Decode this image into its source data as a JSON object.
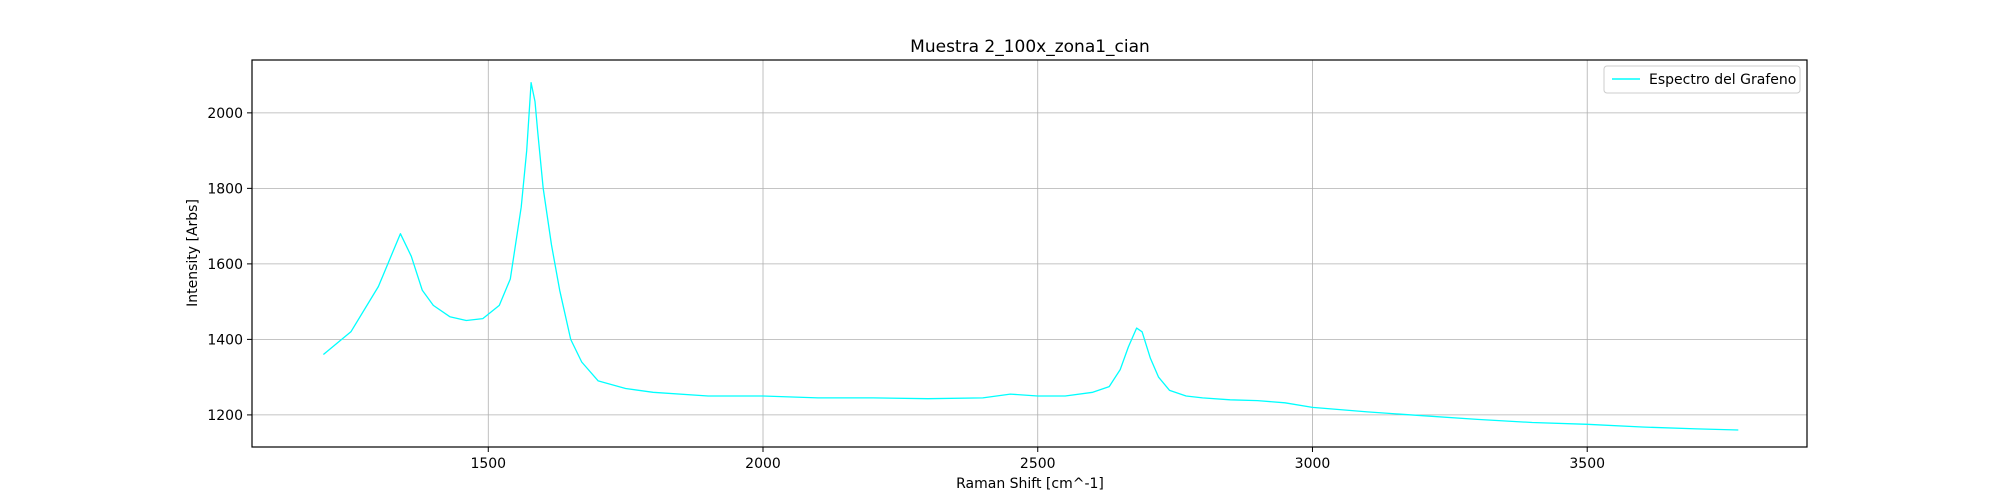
{
  "chart_data": {
    "type": "line",
    "title": "Muestra 2_100x_zona1_cian",
    "xlabel": "Raman Shift [cm^-1]",
    "ylabel": "Intensity [Arbs]",
    "xlim": [
      1070,
      3900
    ],
    "ylim": [
      1115,
      2140
    ],
    "xticks": [
      1500,
      2000,
      2500,
      3000,
      3500
    ],
    "yticks": [
      1200,
      1400,
      1600,
      1800,
      2000
    ],
    "grid": true,
    "legend_position": "top-right",
    "series": [
      {
        "name": "Espectro del Grafeno",
        "color": "#00ffff",
        "x": [
          1200,
          1250,
          1300,
          1320,
          1340,
          1360,
          1380,
          1400,
          1430,
          1460,
          1490,
          1520,
          1540,
          1560,
          1570,
          1578,
          1585,
          1590,
          1600,
          1615,
          1630,
          1650,
          1670,
          1700,
          1750,
          1800,
          1900,
          2000,
          2100,
          2200,
          2300,
          2400,
          2450,
          2500,
          2550,
          2600,
          2630,
          2650,
          2665,
          2680,
          2690,
          2705,
          2720,
          2740,
          2770,
          2800,
          2850,
          2900,
          2950,
          3000,
          3100,
          3200,
          3300,
          3400,
          3500,
          3600,
          3700,
          3775
        ],
        "values": [
          1360,
          1420,
          1540,
          1610,
          1680,
          1620,
          1530,
          1490,
          1460,
          1450,
          1455,
          1490,
          1560,
          1750,
          1900,
          2080,
          2030,
          1950,
          1800,
          1650,
          1530,
          1400,
          1340,
          1290,
          1270,
          1260,
          1250,
          1250,
          1245,
          1245,
          1243,
          1245,
          1255,
          1250,
          1250,
          1260,
          1275,
          1320,
          1380,
          1430,
          1420,
          1350,
          1300,
          1265,
          1250,
          1245,
          1240,
          1238,
          1232,
          1220,
          1208,
          1198,
          1188,
          1180,
          1175,
          1168,
          1163,
          1160
        ]
      }
    ]
  }
}
